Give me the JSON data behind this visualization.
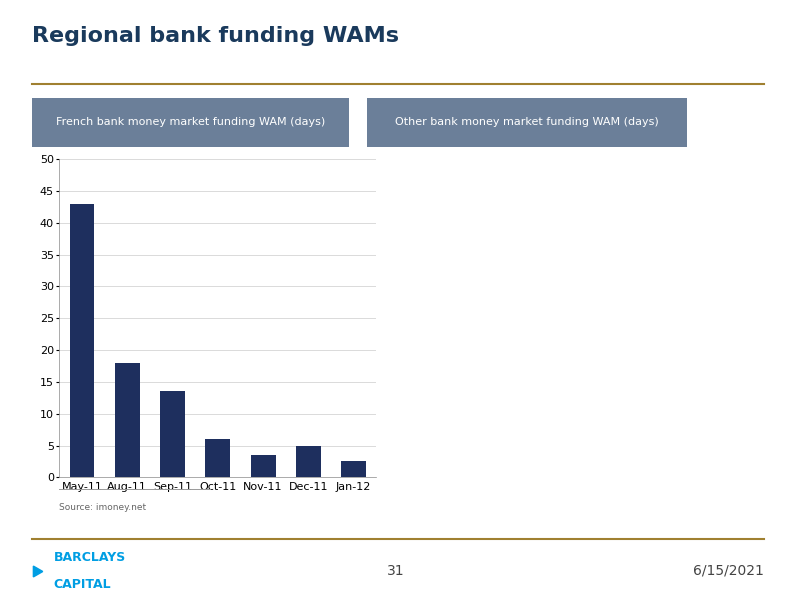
{
  "title": "Regional bank funding WAMs",
  "title_fontsize": 16,
  "title_color": "#1a3a5c",
  "label1": "French bank money market funding WAM (days)",
  "label2": "Other bank money market funding WAM (days)",
  "label_bg_color": "#6b7f99",
  "label_text_color": "#ffffff",
  "categories": [
    "May-11",
    "Aug-11",
    "Sep-11",
    "Oct-11",
    "Nov-11",
    "Dec-11",
    "Jan-12"
  ],
  "values": [
    43,
    18,
    13.5,
    6,
    3.5,
    5,
    2.5
  ],
  "bar_color": "#1e2f5e",
  "ylim": [
    0,
    50
  ],
  "yticks": [
    0,
    5,
    10,
    15,
    20,
    25,
    30,
    35,
    40,
    45,
    50
  ],
  "source_text": "Source: imoney.net",
  "title_line_color": "#a08030",
  "footer_line_color": "#a08030",
  "page_number": "31",
  "date_text": "6/15/2021",
  "background_color": "#ffffff",
  "grid_color": "#cccccc",
  "tick_fontsize": 8,
  "barclays_color": "#009ee3",
  "footer_text_color": "#444444"
}
